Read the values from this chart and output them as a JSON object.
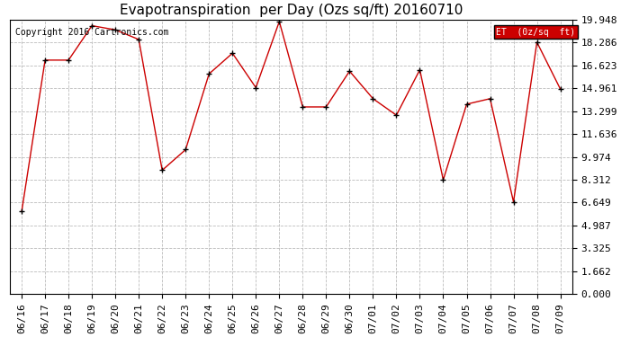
{
  "title": "Evapotranspiration  per Day (Ozs sq/ft) 20160710",
  "copyright": "Copyright 2016 Cartronics.com",
  "legend_label": "ET  (0z/sq  ft)",
  "legend_bg": "#cc0000",
  "legend_text_color": "#ffffff",
  "x_labels": [
    "06/16",
    "06/17",
    "06/18",
    "06/19",
    "06/20",
    "06/21",
    "06/22",
    "06/23",
    "06/24",
    "06/25",
    "06/26",
    "06/27",
    "06/28",
    "06/29",
    "06/30",
    "07/01",
    "07/02",
    "07/03",
    "07/04",
    "07/05",
    "07/06",
    "07/07",
    "07/08",
    "07/09"
  ],
  "y_values": [
    6.0,
    17.0,
    17.0,
    19.5,
    19.2,
    18.5,
    9.0,
    10.5,
    16.0,
    17.5,
    15.0,
    19.8,
    13.6,
    13.6,
    16.2,
    14.2,
    13.0,
    16.3,
    8.3,
    13.8,
    14.2,
    6.7,
    18.3,
    14.9
  ],
  "y_ticks": [
    0.0,
    1.662,
    3.325,
    4.987,
    6.649,
    8.312,
    9.974,
    11.636,
    13.299,
    14.961,
    16.623,
    18.286,
    19.948
  ],
  "ylim": [
    0.0,
    19.948
  ],
  "line_color": "#cc0000",
  "marker": "+",
  "marker_color": "#000000",
  "bg_color": "#ffffff",
  "grid_color": "#bbbbbb",
  "title_fontsize": 11,
  "copyright_fontsize": 7,
  "tick_fontsize": 8,
  "ytick_fontsize": 8,
  "tick_label_color": "#000000"
}
